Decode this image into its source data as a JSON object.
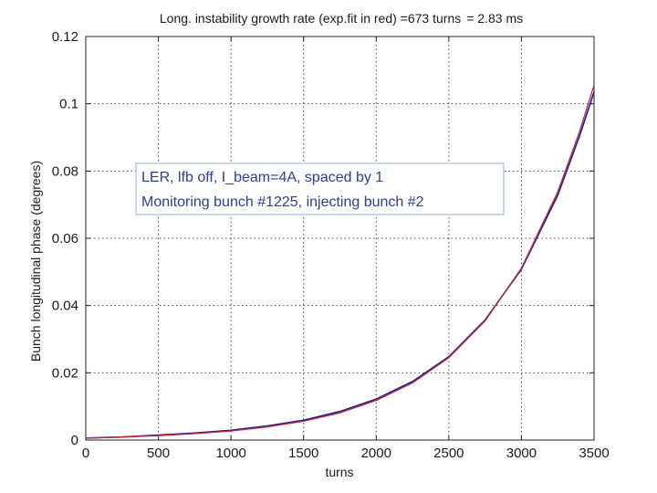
{
  "colors": {
    "background": "#ffffff",
    "measured_series": "#1a1f8f",
    "fit_series": "#c0293b",
    "title_suffix": "#d4502a",
    "annotation_text": "#2c3e91",
    "annotation_border": "#8fb0d8"
  },
  "chart_data": {
    "type": "line",
    "title": "Long. instability growth rate (exp.fit in red) =673 turns",
    "title_suffix": "= 2.83 ms",
    "xlabel": "turns",
    "ylabel": "Bunch longitudinal phase (degrees)",
    "xlim": [
      0,
      3500
    ],
    "ylim": [
      0,
      0.12
    ],
    "xticks": [
      0,
      500,
      1000,
      1500,
      2000,
      2500,
      3000,
      3500
    ],
    "xtick_labels": [
      "0",
      "500",
      "1000",
      "1500",
      "2000",
      "2500",
      "3000",
      "3500"
    ],
    "yticks": [
      0,
      0.02,
      0.04,
      0.06,
      0.08,
      0.1,
      0.12
    ],
    "ytick_labels": [
      "0",
      "0.02",
      "0.04",
      "0.06",
      "0.08",
      "0.1",
      "0.12"
    ],
    "grid": true,
    "annotation_lines": [
      "LER, lfb off, I_beam=4A, spaced by 1",
      "Monitoring bunch #1225, injecting bunch #2"
    ],
    "series": [
      {
        "color": "#1a1f8f",
        "x": [
          0,
          250,
          500,
          750,
          1000,
          1250,
          1500,
          1750,
          2000,
          2250,
          2500,
          2750,
          3000,
          3250,
          3400,
          3500
        ],
        "y": [
          0.0006,
          0.0009,
          0.0015,
          0.0021,
          0.0029,
          0.0042,
          0.0059,
          0.0085,
          0.0122,
          0.0174,
          0.0248,
          0.0357,
          0.0508,
          0.0728,
          0.0904,
          0.1035
        ]
      },
      {
        "color": "#c0293b",
        "x": [
          0,
          250,
          500,
          750,
          1000,
          1250,
          1500,
          1750,
          2000,
          2250,
          2500,
          2750,
          3000,
          3250,
          3400,
          3500
        ],
        "y": [
          0.0006,
          0.0009,
          0.0013,
          0.0019,
          0.0027,
          0.0039,
          0.0056,
          0.0081,
          0.0118,
          0.017,
          0.0245,
          0.0354,
          0.0511,
          0.0738,
          0.0917,
          0.1055
        ]
      }
    ]
  }
}
